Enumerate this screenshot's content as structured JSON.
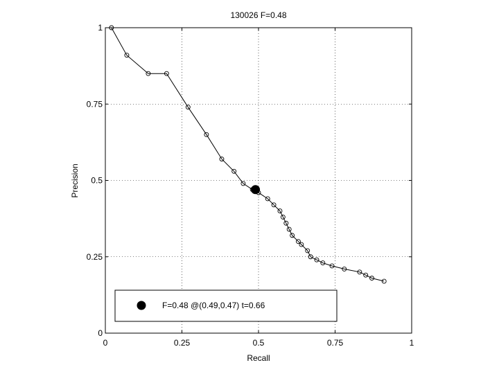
{
  "chart_data": {
    "type": "line",
    "title": "130026 F=0.48",
    "xlabel": "Recall",
    "ylabel": "Precision",
    "xlim": [
      0,
      1
    ],
    "ylim": [
      0,
      1
    ],
    "xticks": [
      0,
      0.25,
      0.5,
      0.75,
      1
    ],
    "yticks": [
      0,
      0.25,
      0.5,
      0.75,
      1
    ],
    "xtick_labels": [
      "0",
      "0.25",
      "0.5",
      "0.75",
      "1"
    ],
    "ytick_labels": [
      "0",
      "0.25",
      "0.5",
      "0.75",
      "1"
    ],
    "grid": true,
    "series": [
      {
        "marker": "open-circle",
        "x": [
          0.02,
          0.07,
          0.14,
          0.2,
          0.27,
          0.33,
          0.38,
          0.42,
          0.45,
          0.48,
          0.5,
          0.53,
          0.55,
          0.57,
          0.58,
          0.59,
          0.6,
          0.61,
          0.63,
          0.64,
          0.66,
          0.67,
          0.69,
          0.71,
          0.74,
          0.78,
          0.83,
          0.85,
          0.87,
          0.91
        ],
        "y": [
          1.0,
          0.91,
          0.85,
          0.85,
          0.74,
          0.65,
          0.57,
          0.53,
          0.49,
          0.47,
          0.46,
          0.44,
          0.42,
          0.4,
          0.38,
          0.36,
          0.34,
          0.32,
          0.3,
          0.29,
          0.27,
          0.25,
          0.24,
          0.23,
          0.22,
          0.21,
          0.2,
          0.19,
          0.18,
          0.17
        ]
      }
    ],
    "best_point": {
      "x": 0.49,
      "y": 0.47
    },
    "legend": {
      "position": "bottom",
      "text": "F=0.48 @(0.49,0.47) t=0.66"
    }
  }
}
